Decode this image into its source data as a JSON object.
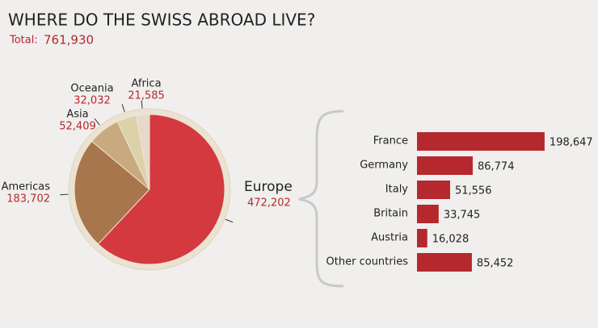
{
  "chart_data": [
    {
      "type": "pie",
      "title": "WHERE DO THE SWISS ABROAD LIVE?",
      "total_label": "Total:",
      "total": {
        "value": 761930,
        "label": "761,930"
      },
      "categories": [
        "Europe",
        "Americas",
        "Asia",
        "Oceania",
        "Africa"
      ],
      "values": [
        472202,
        183702,
        52409,
        32032,
        21585
      ],
      "value_labels": [
        "472,202",
        "183,702",
        "52,409",
        "32,032",
        "21,585"
      ],
      "colors": [
        "#d4393f",
        "#a8764c",
        "#c8aa7e",
        "#ddd1a9",
        "#e7d9c9"
      ]
    },
    {
      "type": "bar",
      "orientation": "horizontal",
      "categories": [
        "France",
        "Germany",
        "Italy",
        "Britain",
        "Austria",
        "Other countries"
      ],
      "values": [
        198647,
        86774,
        51556,
        33745,
        16028,
        85452
      ],
      "value_labels": [
        "198,647",
        "86,774",
        "51,556",
        "33,745",
        "16,028",
        "85,452"
      ],
      "color": "#b5282e",
      "xlim": [
        0,
        200000
      ]
    }
  ]
}
